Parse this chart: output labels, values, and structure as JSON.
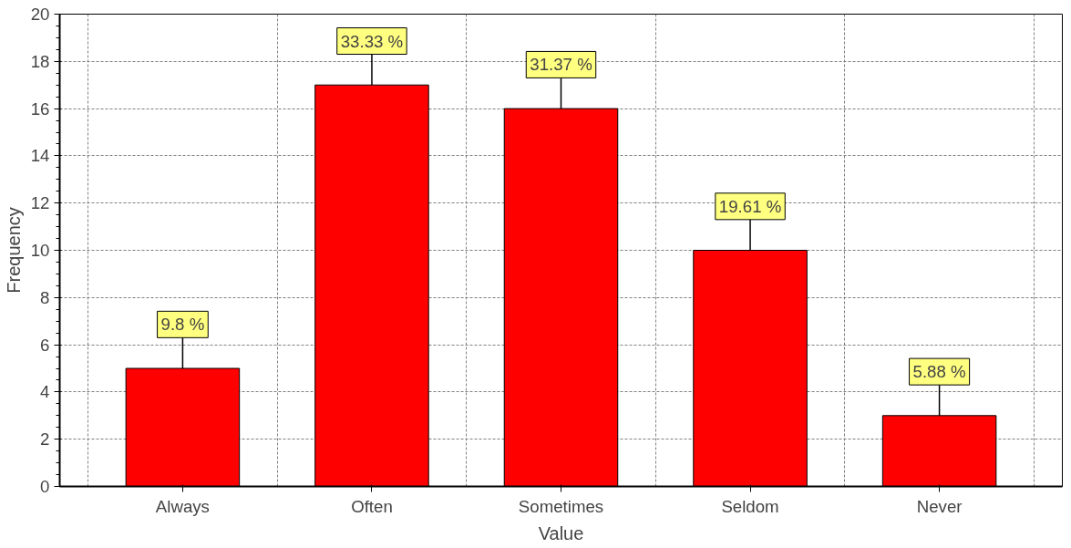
{
  "chart_data": {
    "type": "bar",
    "xlabel": "Value",
    "ylabel": "Frequency",
    "categories": [
      "Always",
      "Often",
      "Sometimes",
      "Seldom",
      "Never"
    ],
    "values": [
      5,
      17,
      16,
      10,
      3
    ],
    "color": "#ff0000",
    "annotations": [
      {
        "text": "9.8 %",
        "x": "Always",
        "y": 5
      },
      {
        "text": "33.33 %",
        "x": "Often",
        "y": 17
      },
      {
        "text": "31.37 %",
        "x": "Sometimes",
        "y": 16
      },
      {
        "text": "19.61 %",
        "x": "Seldom",
        "y": 10
      },
      {
        "text": "5.88 %",
        "x": "Never",
        "y": 3
      }
    ],
    "ylim": [
      0,
      20
    ],
    "yticks": [
      0,
      2,
      4,
      6,
      8,
      10,
      12,
      14,
      16,
      18,
      20
    ],
    "grid": true
  }
}
